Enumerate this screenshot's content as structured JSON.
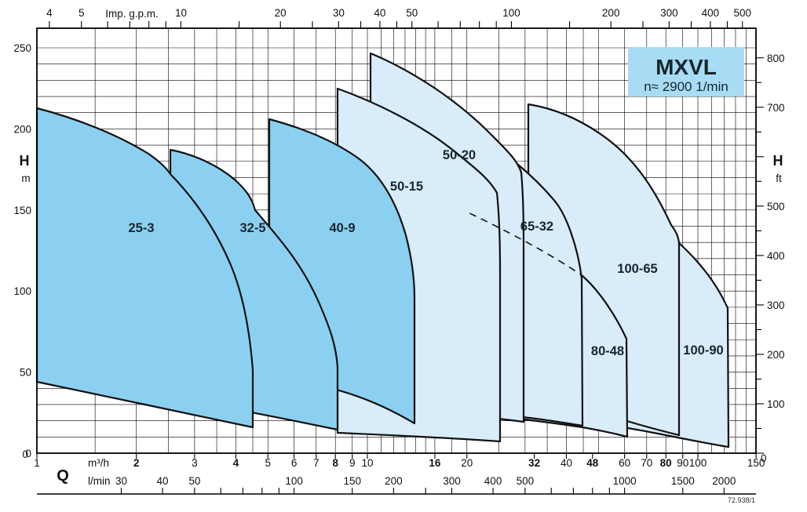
{
  "title_box": {
    "title": "MXVL",
    "subtitle": "n≈ 2900 1/min",
    "bg_color": "#a8dcf5"
  },
  "code_label": "72.938/1",
  "colors": {
    "dark_fill": "#8bd0f0",
    "light_fill": "#d8ecf9",
    "stroke": "#111111",
    "grid": "#000000"
  },
  "axes": {
    "top": {
      "unit": "Imp. g.p.m.",
      "labels": [
        "4",
        "5",
        "10",
        "20",
        "30",
        "40",
        "50",
        "100",
        "200",
        "300",
        "400",
        "500"
      ]
    },
    "left": {
      "letter": "H",
      "unit": "m",
      "labels": [
        "0",
        "50",
        "100",
        "150",
        "200",
        "250"
      ]
    },
    "right": {
      "letter": "H",
      "unit": "ft",
      "labels": [
        "0",
        "100",
        "200",
        "300",
        "400",
        "500",
        "700",
        "800"
      ]
    },
    "bottom": {
      "letter": "Q",
      "unit_m3h": "m³/h",
      "unit_lmin": "l/min",
      "m3h_labels": [
        "1",
        "2",
        "3",
        "4",
        "5",
        "6",
        "7",
        "8",
        "9",
        "10",
        "16",
        "20",
        "32",
        "40",
        "48",
        "60",
        "70",
        "80",
        "90",
        "100",
        "150"
      ],
      "m3h_bold": [
        "2",
        "4",
        "8",
        "16",
        "32",
        "48",
        "80"
      ],
      "lmin_labels": [
        "30",
        "40",
        "50",
        "100",
        "150",
        "200",
        "300",
        "400",
        "500",
        "1000",
        "1500",
        "2000"
      ],
      "zero_left": "0",
      "zero_right": "0"
    }
  },
  "chart_data": {
    "type": "area",
    "title": "MXVL",
    "subtitle": "n≈ 2900 1/min",
    "xlabel": "Q (m³/h, l/min, Imp. g.p.m.)",
    "ylabel": "H (m, ft)",
    "x_scale": "log",
    "x_range_m3h": [
      1,
      150
    ],
    "y_range_m": [
      0,
      262
    ],
    "grid": true,
    "x_gridlines_m3h": [
      1,
      1.5,
      2,
      2.5,
      3,
      3.5,
      4,
      4.5,
      5,
      6,
      7,
      8,
      9,
      10,
      11,
      12,
      13,
      14,
      15,
      16,
      18,
      20,
      25,
      30,
      35,
      40,
      45,
      50,
      60,
      70,
      80,
      90,
      100,
      110,
      120,
      130,
      140,
      150
    ],
    "y_gridlines_m_step": 10,
    "top_ticks_gpm": [
      4,
      5,
      6,
      7,
      8,
      9,
      10,
      15,
      20,
      25,
      30,
      35,
      40,
      45,
      50,
      60,
      70,
      80,
      90,
      100,
      150,
      200,
      250,
      300,
      350,
      400,
      450,
      500
    ],
    "right_ticks_ft_step": 50,
    "series": [
      {
        "name": "25-3",
        "group": "dark",
        "q_min_m3h": 1.0,
        "q_max_m3h": 4.5,
        "h_max_m": 213,
        "h_min_at_qmin_m": 44,
        "h_min_at_qmax_m": 16
      },
      {
        "name": "32-5",
        "group": "dark",
        "q_min_m3h": 2.5,
        "q_max_m3h": 8.1,
        "h_max_m": 187,
        "h_min_at_qmin_m": 33,
        "h_min_at_qmax_m": 14
      },
      {
        "name": "40-9",
        "group": "dark",
        "q_min_m3h": 5.0,
        "q_max_m3h": 13.9,
        "h_max_m": 206,
        "h_min_at_qmin_m": 47,
        "h_min_at_qmax_m": 18
      },
      {
        "name": "50-15",
        "group": "light",
        "q_min_m3h": 8.1,
        "q_max_m3h": 25.2,
        "h_max_m": 225,
        "h_min_at_qmin_m": 12,
        "h_min_at_qmax_m": 7
      },
      {
        "name": "50-20",
        "group": "light",
        "q_min_m3h": 10.2,
        "q_max_m3h": 29.6,
        "h_max_m": 246,
        "h_min_at_qmin_m": 27,
        "h_min_at_qmax_m": 19
      },
      {
        "name": "65-32",
        "group": "light",
        "q_min_m3h": 20.4,
        "q_max_m3h": 44.5,
        "h_max_m": 198,
        "h_min_at_qmin_m": 25,
        "h_min_at_qmax_m": 17
      },
      {
        "name": "80-48",
        "group": "light",
        "q_min_m3h": 24.0,
        "q_max_m3h": 61.0,
        "h_max_m": 150,
        "h_min_at_qmin_m": 23,
        "h_min_at_qmax_m": 10
      },
      {
        "name": "100-65",
        "group": "light",
        "q_min_m3h": 30.6,
        "q_max_m3h": 88.0,
        "h_max_m": 215,
        "h_min_at_qmin_m": 28,
        "h_min_at_qmax_m": 11
      },
      {
        "name": "100-90",
        "group": "light",
        "q_min_m3h": 45.0,
        "q_max_m3h": 123.0,
        "h_max_m": 155,
        "h_min_at_qmin_m": 19,
        "h_min_at_qmax_m": 4
      }
    ],
    "annotations": [
      {
        "type": "dashed-line",
        "note": "hidden top curve of 80-48 crossing other envelopes",
        "from_q_m3h": 20.4,
        "from_h_m": 148,
        "to_q_m3h": 44.3,
        "to_h_m": 110
      }
    ],
    "legend_position": "none"
  }
}
